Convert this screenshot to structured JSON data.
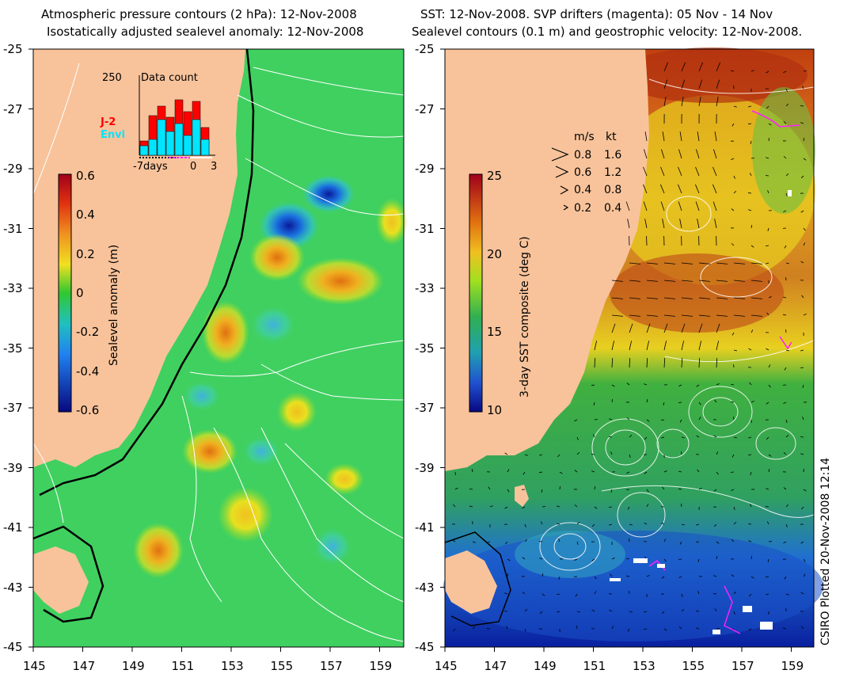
{
  "left_panel": {
    "title_line1": "Atmospheric pressure contours (2 hPa): 12-Nov-2008",
    "title_line2": "Isostatically adjusted sealevel anomaly: 12-Nov-2008",
    "colorbar_label": "Sealevel anomaly (m)",
    "colorbar_ticks": [
      "0.6",
      "0.4",
      "0.2",
      "0",
      "-0.2",
      "-0.4",
      "-0.6"
    ],
    "inset": {
      "count_label": "250",
      "title": "Data count",
      "legend_j2": "J-2",
      "legend_envi": "Envi",
      "x_labels": [
        "-7days",
        "0",
        "3"
      ]
    }
  },
  "right_panel": {
    "title_line1": "SST: 12-Nov-2008. SVP drifters (magenta): 05 Nov - 14 Nov",
    "title_line2": "Sealevel contours (0.1 m) and geostrophic velocity: 12-Nov-2008.",
    "colorbar_label": "3-day SST composite (deg C)",
    "colorbar_ticks": [
      "25",
      "20",
      "15",
      "10"
    ],
    "velocity_legend": {
      "header_ms": "m/s",
      "header_kt": "kt",
      "rows": [
        {
          "ms": "0.8",
          "kt": "1.6"
        },
        {
          "ms": "0.6",
          "kt": "1.2"
        },
        {
          "ms": "0.4",
          "kt": "0.8"
        },
        {
          "ms": "0.2",
          "kt": "0.4"
        }
      ]
    }
  },
  "axes": {
    "y_ticks": [
      "-25",
      "-27",
      "-29",
      "-31",
      "-33",
      "-35",
      "-37",
      "-39",
      "-41",
      "-43",
      "-45"
    ],
    "x_ticks": [
      "145",
      "147",
      "149",
      "151",
      "153",
      "155",
      "157",
      "159"
    ]
  },
  "credit": "CSIRO Plotted 20-Nov-2008 12:14",
  "colors": {
    "land": "#f8c39b",
    "sla_mid": "#36cc36",
    "sst_warm": "#e7a020",
    "sst_cold": "#1a60cf",
    "drifter": "#ff20ff",
    "j2": "#ff0000",
    "envi": "#00e5ff"
  }
}
